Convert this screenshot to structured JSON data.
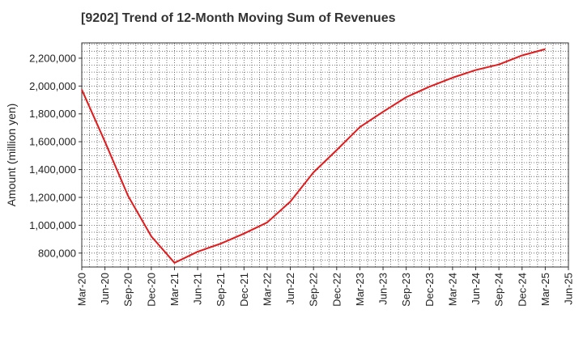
{
  "chart_data": {
    "type": "line",
    "title": "[9202]  Trend of 12-Month Moving Sum of Revenues",
    "xlabel": "",
    "ylabel": "Amount (million yen)",
    "ylim": [
      700000,
      2310000
    ],
    "yticks": [
      800000,
      1000000,
      1200000,
      1400000,
      1600000,
      1800000,
      2000000,
      2200000
    ],
    "ytick_labels": [
      "800,000",
      "1,000,000",
      "1,200,000",
      "1,400,000",
      "1,600,000",
      "1,800,000",
      "2,000,000",
      "2,200,000"
    ],
    "x_tick_labels": [
      "Mar-20",
      "Jun-20",
      "Sep-20",
      "Dec-20",
      "Mar-21",
      "Jun-21",
      "Sep-21",
      "Dec-21",
      "Mar-22",
      "Jun-22",
      "Sep-22",
      "Dec-22",
      "Mar-23",
      "Jun-23",
      "Sep-23",
      "Dec-23",
      "Mar-24",
      "Jun-24",
      "Sep-24",
      "Dec-24",
      "Mar-25",
      "Jun-25"
    ],
    "grid": true,
    "series": [
      {
        "color": "#e31a1c",
        "x": [
          "Mar-20",
          "Jun-20",
          "Sep-20",
          "Dec-20",
          "Mar-21",
          "Jun-21",
          "Sep-21",
          "Dec-21",
          "Mar-22",
          "Jun-22",
          "Sep-22",
          "Dec-22",
          "Mar-23",
          "Jun-23",
          "Sep-23",
          "Dec-23",
          "Mar-24",
          "Jun-24",
          "Sep-24",
          "Dec-24",
          "Mar-25"
        ],
        "values": [
          1974000,
          1600000,
          1210000,
          920000,
          730000,
          810000,
          868000,
          940000,
          1020000,
          1170000,
          1380000,
          1540000,
          1705000,
          1815000,
          1920000,
          1995000,
          2060000,
          2115000,
          2155000,
          2220000,
          2265000
        ]
      }
    ]
  }
}
